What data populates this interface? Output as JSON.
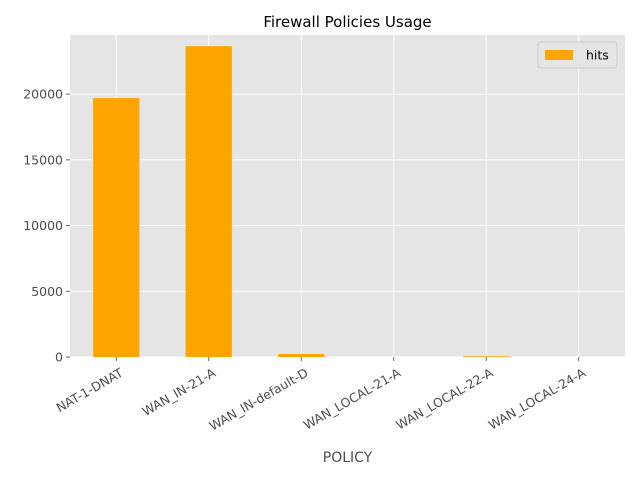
{
  "chart_data": {
    "type": "bar",
    "title": "Firewall Policies Usage",
    "xlabel": "POLICY",
    "ylabel": "",
    "categories": [
      "NAT-1-DNAT",
      "WAN_IN-21-A",
      "WAN_IN-default-D",
      "WAN_LOCAL-21-A",
      "WAN_LOCAL-22-A",
      "WAN_LOCAL-24-A"
    ],
    "series": [
      {
        "name": "hits",
        "values": [
          19700,
          23650,
          230,
          0,
          60,
          0
        ],
        "color": "#FFA500"
      }
    ],
    "ylim": [
      0,
      24500
    ],
    "yticks": [
      0,
      5000,
      10000,
      15000,
      20000
    ],
    "ytick_labels": [
      "0",
      "5000",
      "10000",
      "15000",
      "20000"
    ],
    "grid": true,
    "legend_position": "top-right",
    "background_color": "#E5E5E5",
    "grid_color": "#FFFFFF"
  }
}
